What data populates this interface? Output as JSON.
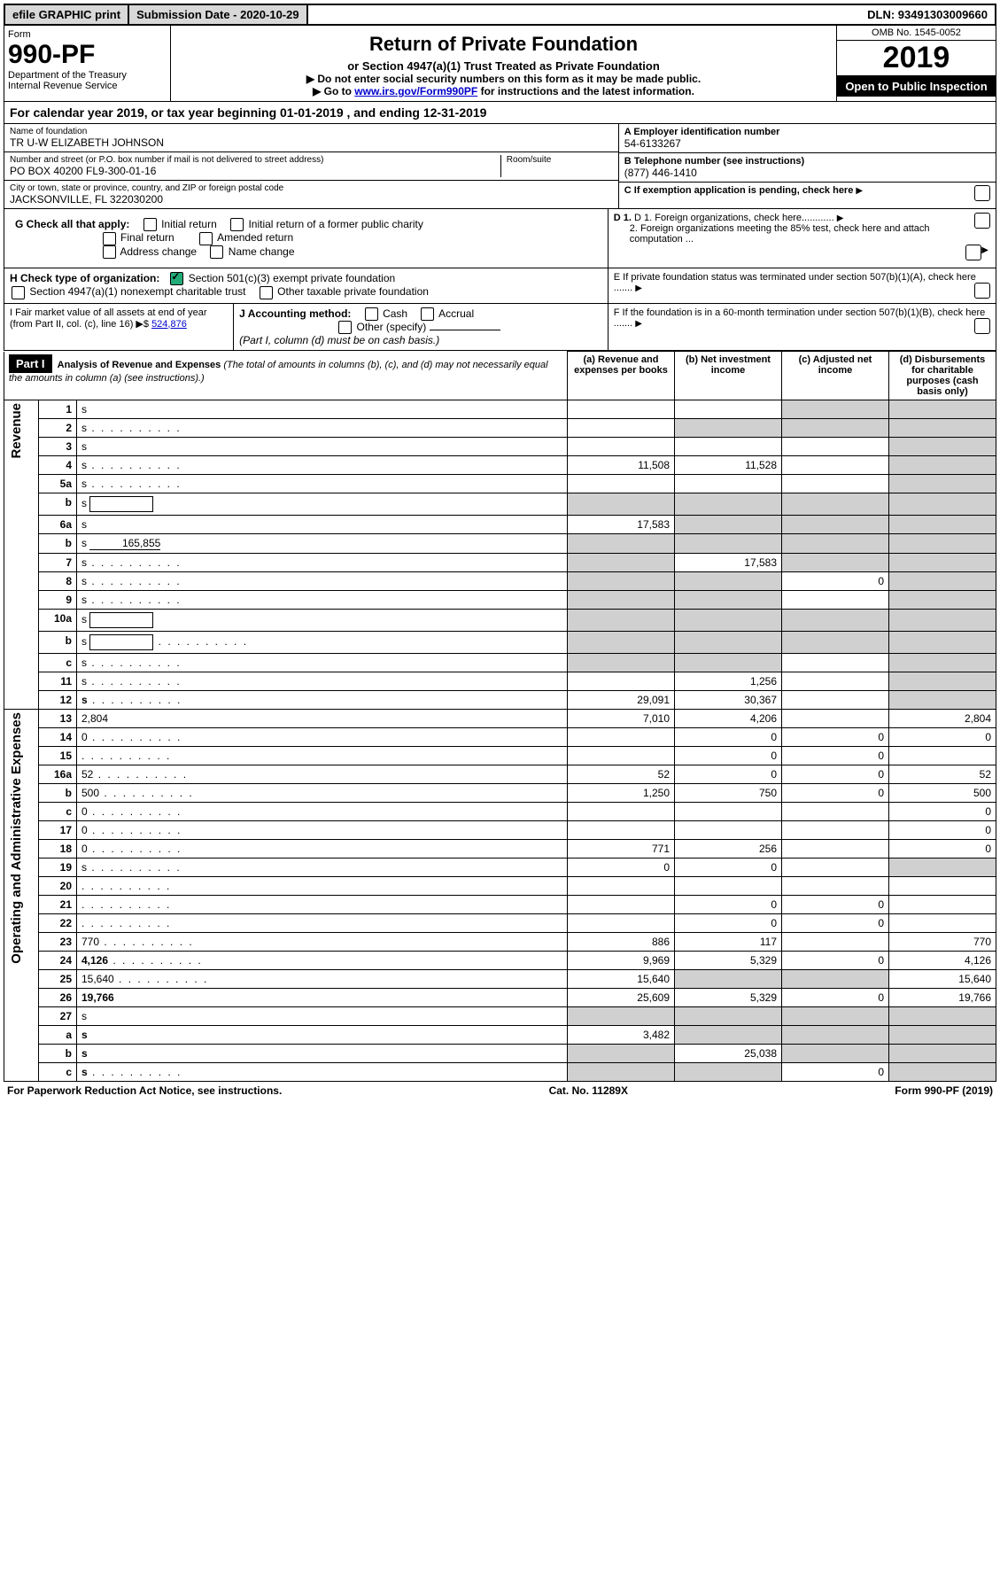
{
  "topbar": {
    "efile": "efile GRAPHIC print",
    "submission": "Submission Date - 2020-10-29",
    "dln": "DLN: 93491303009660"
  },
  "header": {
    "form_label": "Form",
    "form_no": "990-PF",
    "dept": "Department of the Treasury",
    "irs": "Internal Revenue Service",
    "title": "Return of Private Foundation",
    "subtitle": "or Section 4947(a)(1) Trust Treated as Private Foundation",
    "note1": "▶ Do not enter social security numbers on this form as it may be made public.",
    "note2_pre": "▶ Go to ",
    "note2_link": "www.irs.gov/Form990PF",
    "note2_post": " for instructions and the latest information.",
    "omb": "OMB No. 1545-0052",
    "year": "2019",
    "open": "Open to Public Inspection"
  },
  "cal": "For calendar year 2019, or tax year beginning 01-01-2019              , and ending 12-31-2019",
  "info": {
    "name_lbl": "Name of foundation",
    "name": "TR U-W ELIZABETH JOHNSON",
    "addr_lbl": "Number and street (or P.O. box number if mail is not delivered to street address)",
    "addr": "PO BOX 40200 FL9-300-01-16",
    "room_lbl": "Room/suite",
    "city_lbl": "City or town, state or province, country, and ZIP or foreign postal code",
    "city": "JACKSONVILLE, FL  322030200",
    "a_lbl": "A Employer identification number",
    "a_val": "54-6133267",
    "b_lbl": "B Telephone number (see instructions)",
    "b_val": "(877) 446-1410",
    "c_lbl": "C If exemption application is pending, check here",
    "d1": "D 1. Foreign organizations, check here............",
    "d2": "2. Foreign organizations meeting the 85% test, check here and attach computation ...",
    "e": "E  If private foundation status was terminated under section 507(b)(1)(A), check here .......",
    "f": "F  If the foundation is in a 60-month termination under section 507(b)(1)(B), check here ......."
  },
  "g": {
    "label": "G Check all that apply:",
    "initial": "Initial return",
    "initial_former": "Initial return of a former public charity",
    "final": "Final return",
    "amended": "Amended return",
    "address": "Address change",
    "name_change": "Name change"
  },
  "h": {
    "label": "H Check type of organization:",
    "a": "Section 501(c)(3) exempt private foundation",
    "b": "Section 4947(a)(1) nonexempt charitable trust",
    "c": "Other taxable private foundation"
  },
  "i": {
    "label": "I Fair market value of all assets at end of year (from Part II, col. (c), line 16) ▶$",
    "value": "524,876"
  },
  "j": {
    "label": "J Accounting method:",
    "cash": "Cash",
    "accrual": "Accrual",
    "other": "Other (specify)",
    "note": "(Part I, column (d) must be on cash basis.)"
  },
  "part1": {
    "label": "Part I",
    "title": "Analysis of Revenue and Expenses",
    "title_note": "(The total of amounts in columns (b), (c), and (d) may not necessarily equal the amounts in column (a) (see instructions).)",
    "col_a": "(a)   Revenue and expenses per books",
    "col_b": "(b)  Net investment income",
    "col_c": "(c)  Adjusted net income",
    "col_d": "(d)  Disbursements for charitable purposes (cash basis only)"
  },
  "side": {
    "revenue": "Revenue",
    "expenses": "Operating and Administrative Expenses"
  },
  "rows": [
    {
      "n": "1",
      "d": "s",
      "a": "",
      "b": "",
      "c": "s"
    },
    {
      "n": "2",
      "d": "s",
      "a": "",
      "b": "s",
      "c": "s",
      "dots": true
    },
    {
      "n": "3",
      "d": "s",
      "a": "",
      "b": "",
      "c": ""
    },
    {
      "n": "4",
      "d": "s",
      "a": "11,508",
      "b": "11,528",
      "c": "",
      "dots": true
    },
    {
      "n": "5a",
      "d": "s",
      "a": "",
      "b": "",
      "c": "",
      "dots": true
    },
    {
      "n": "b",
      "d": "s",
      "a": "s",
      "b": "s",
      "c": "s",
      "hasbox": true
    },
    {
      "n": "6a",
      "d": "s",
      "a": "17,583",
      "b": "s",
      "c": "s"
    },
    {
      "n": "b",
      "d": "s",
      "a": "s",
      "b": "s",
      "c": "s",
      "inlineval": "165,855"
    },
    {
      "n": "7",
      "d": "s",
      "a": "s",
      "b": "17,583",
      "c": "s",
      "dots": true
    },
    {
      "n": "8",
      "d": "s",
      "a": "s",
      "b": "s",
      "c": "0",
      "dots": true
    },
    {
      "n": "9",
      "d": "s",
      "a": "s",
      "b": "s",
      "c": "",
      "dots": true
    },
    {
      "n": "10a",
      "d": "s",
      "a": "s",
      "b": "s",
      "c": "s",
      "hasbox": true
    },
    {
      "n": "b",
      "d": "s",
      "a": "s",
      "b": "s",
      "c": "s",
      "dots": true,
      "hasbox": true
    },
    {
      "n": "c",
      "d": "s",
      "a": "s",
      "b": "s",
      "c": "",
      "dots": true
    },
    {
      "n": "11",
      "d": "s",
      "a": "",
      "b": "1,256",
      "c": "",
      "dots": true
    },
    {
      "n": "12",
      "d": "s",
      "a": "29,091",
      "b": "30,367",
      "c": "",
      "bold": true,
      "dots": true
    },
    {
      "n": "13",
      "d": "2,804",
      "a": "7,010",
      "b": "4,206",
      "c": ""
    },
    {
      "n": "14",
      "d": "0",
      "a": "",
      "b": "0",
      "c": "0",
      "dots": true
    },
    {
      "n": "15",
      "d": "",
      "a": "",
      "b": "0",
      "c": "0",
      "dots": true
    },
    {
      "n": "16a",
      "d": "52",
      "a": "52",
      "b": "0",
      "c": "0",
      "dots": true
    },
    {
      "n": "b",
      "d": "500",
      "a": "1,250",
      "b": "750",
      "c": "0",
      "dots": true
    },
    {
      "n": "c",
      "d": "0",
      "a": "",
      "b": "",
      "c": "",
      "dots": true
    },
    {
      "n": "17",
      "d": "0",
      "a": "",
      "b": "",
      "c": "",
      "dots": true
    },
    {
      "n": "18",
      "d": "0",
      "a": "771",
      "b": "256",
      "c": "",
      "dots": true
    },
    {
      "n": "19",
      "d": "s",
      "a": "0",
      "b": "0",
      "c": "",
      "dots": true
    },
    {
      "n": "20",
      "d": "",
      "a": "",
      "b": "",
      "c": "",
      "dots": true
    },
    {
      "n": "21",
      "d": "",
      "a": "",
      "b": "0",
      "c": "0",
      "dots": true
    },
    {
      "n": "22",
      "d": "",
      "a": "",
      "b": "0",
      "c": "0",
      "dots": true
    },
    {
      "n": "23",
      "d": "770",
      "a": "886",
      "b": "117",
      "c": "",
      "dots": true
    },
    {
      "n": "24",
      "d": "4,126",
      "a": "9,969",
      "b": "5,329",
      "c": "0",
      "bold": true,
      "dots": true
    },
    {
      "n": "25",
      "d": "15,640",
      "a": "15,640",
      "b": "s",
      "c": "s",
      "dots": true
    },
    {
      "n": "26",
      "d": "19,766",
      "a": "25,609",
      "b": "5,329",
      "c": "0",
      "bold": true
    },
    {
      "n": "27",
      "d": "s",
      "a": "s",
      "b": "s",
      "c": "s"
    },
    {
      "n": "a",
      "d": "s",
      "a": "3,482",
      "b": "s",
      "c": "s",
      "bold": true
    },
    {
      "n": "b",
      "d": "s",
      "a": "s",
      "b": "25,038",
      "c": "s",
      "bold": true
    },
    {
      "n": "c",
      "d": "s",
      "a": "s",
      "b": "s",
      "c": "0",
      "bold": true,
      "dots": true
    }
  ],
  "footer": {
    "left": "For Paperwork Reduction Act Notice, see instructions.",
    "mid": "Cat. No. 11289X",
    "right": "Form 990-PF (2019)"
  }
}
